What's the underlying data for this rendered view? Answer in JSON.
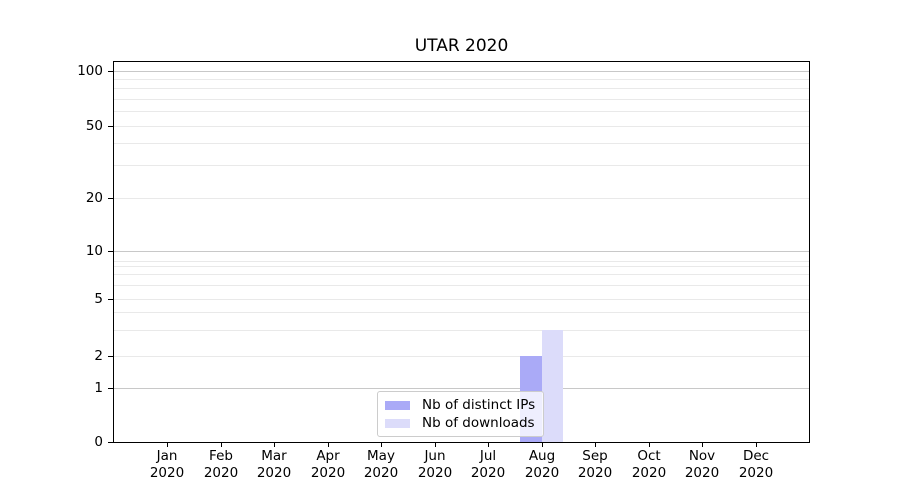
{
  "title": "UTAR 2020",
  "legend": {
    "position": "lower center",
    "items": [
      {
        "label": "Nb of distinct IPs",
        "color": "#aaaaf7"
      },
      {
        "label": "Nb of downloads",
        "color": "#dcdcfa"
      }
    ]
  },
  "chart_data": {
    "type": "bar",
    "title": "UTAR 2020",
    "categories": [
      "Jan 2020",
      "Feb 2020",
      "Mar 2020",
      "Apr 2020",
      "May 2020",
      "Jun 2020",
      "Jul 2020",
      "Aug 2020",
      "Sep 2020",
      "Oct 2020",
      "Nov 2020",
      "Dec 2020"
    ],
    "x_months": [
      "Jan",
      "Feb",
      "Mar",
      "Apr",
      "May",
      "Jun",
      "Jul",
      "Aug",
      "Sep",
      "Oct",
      "Nov",
      "Dec"
    ],
    "x_year": "2020",
    "series": [
      {
        "name": "Nb of distinct IPs",
        "color": "#aaaaf7",
        "values": [
          0,
          0,
          0,
          0,
          0,
          0,
          0,
          2,
          0,
          0,
          0,
          0
        ]
      },
      {
        "name": "Nb of downloads",
        "color": "#dcdcfa",
        "values": [
          0,
          0,
          0,
          0,
          0,
          0,
          0,
          3,
          0,
          0,
          0,
          0
        ]
      }
    ],
    "xlabel": "",
    "ylabel": "",
    "ylim": [
      0,
      110
    ],
    "yscale": "symlog",
    "grid": "both-horizontal",
    "legend_position": "lower center",
    "y_labeled_ticks": [
      0,
      1,
      2,
      5,
      10,
      20,
      50,
      100
    ],
    "y_major_grid_values": [
      1,
      10,
      100
    ],
    "y_tick_fracs": [
      [
        0,
        0.0
      ],
      [
        1,
        0.1432
      ],
      [
        2,
        0.226
      ],
      [
        3,
        0.294
      ],
      [
        4,
        0.341
      ],
      [
        5,
        0.376
      ],
      [
        6,
        0.414
      ],
      [
        7,
        0.442
      ],
      [
        8,
        0.464
      ],
      [
        9,
        0.477
      ],
      [
        10,
        0.5026
      ],
      [
        20,
        0.642
      ],
      [
        30,
        0.7285
      ],
      [
        40,
        0.788
      ],
      [
        50,
        0.8325
      ],
      [
        60,
        0.871
      ],
      [
        70,
        0.903
      ],
      [
        80,
        0.9306
      ],
      [
        90,
        0.9547
      ],
      [
        100,
        0.9764
      ]
    ]
  }
}
